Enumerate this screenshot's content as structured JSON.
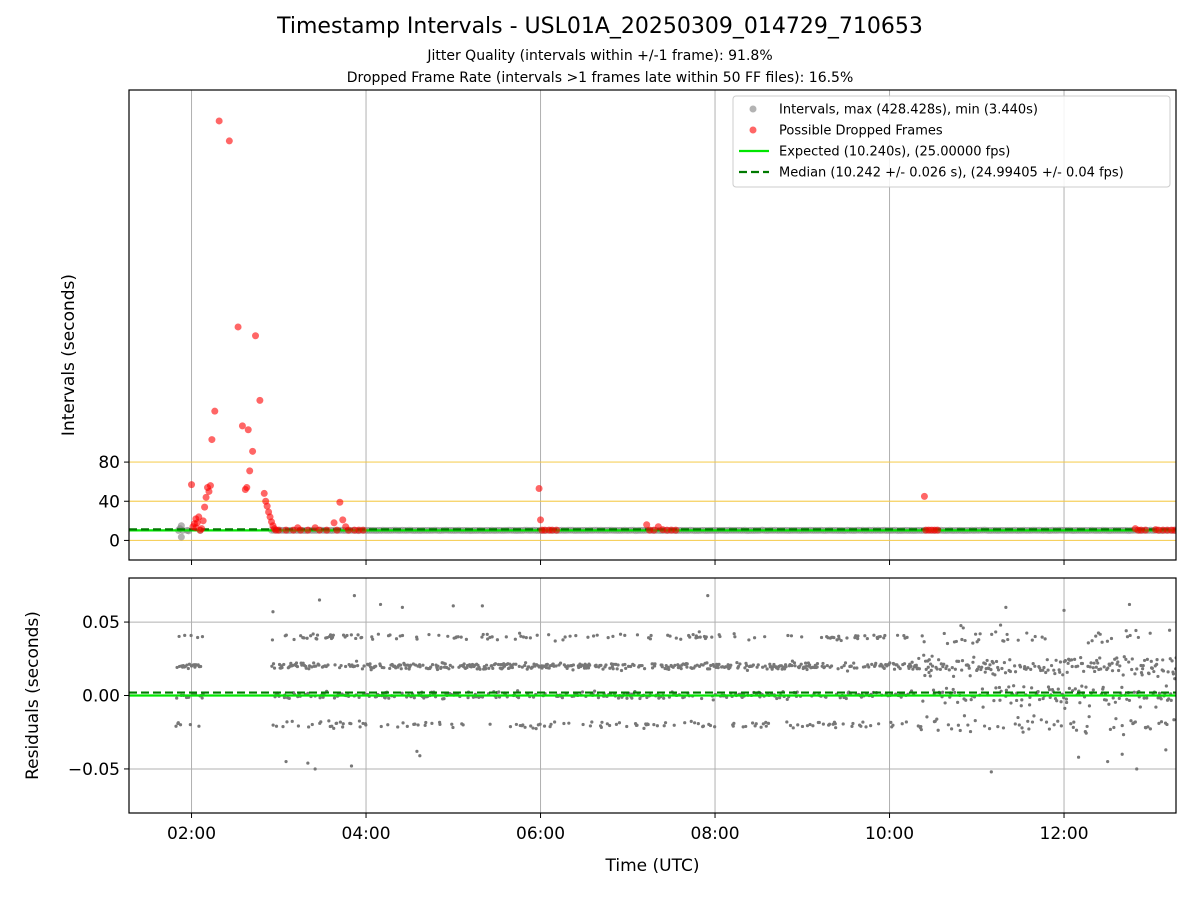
{
  "figure": {
    "title": "Timestamp Intervals - USL01A_20250309_014729_710653",
    "subtitle_1": "Jitter Quality (intervals within +/-1 frame): 91.8%",
    "subtitle_2": "Dropped Frame Rate (intervals >1 frames late within 50 FF files): 16.5%",
    "colors": {
      "interval": "#808080",
      "dropped": "#ff0000",
      "expected": "#00e600",
      "median": "#007a00",
      "threshold": "#f5c842",
      "grid": "#b0b0b0",
      "residual": "#777777"
    }
  },
  "chart_data": [
    {
      "type": "scatter",
      "name": "intervals",
      "title": "",
      "xlabel": "",
      "ylabel": "Intervals (seconds)",
      "xlim": [
        "01:17",
        "13:17"
      ],
      "ylim": [
        -20,
        460
      ],
      "y_ticks": [
        0,
        40,
        80
      ],
      "x_ticks": [
        "02:00",
        "04:00",
        "06:00",
        "08:00",
        "10:00",
        "12:00"
      ],
      "grid": "vertical",
      "threshold_lines": [
        0,
        40,
        80
      ],
      "legend_position": "top-right",
      "legend": [
        {
          "label": "Intervals, max (428.428s), min (3.440s)",
          "symbol": "dot-gray"
        },
        {
          "label": "Possible Dropped Frames",
          "symbol": "dot-red"
        },
        {
          "label": "Expected (10.240s), (25.00000 fps)",
          "symbol": "line-green"
        },
        {
          "label": "Median (10.242 +/- 0.026 s), (24.99405 +/- 0.04 fps)",
          "symbol": "dashed-darkgreen"
        }
      ],
      "expected_value": 10.24,
      "median_value": 10.242,
      "series": [
        {
          "name": "Intervals, max (428.428s), min (3.440s)",
          "points": [
            [
              "01:51",
              10.2
            ],
            [
              "01:52",
              12.0
            ],
            [
              "01:53",
              15.0
            ],
            [
              "01:53",
              3.44
            ],
            [
              "01:54",
              10.3
            ],
            [
              "01:57",
              10.2
            ],
            [
              "01:58",
              9.8
            ],
            [
              "02:06",
              10.1
            ]
          ],
          "baseline_from": "02:55",
          "baseline_to": "13:17",
          "baseline_value": 10.24
        },
        {
          "name": "Possible Dropped Frames",
          "points": [
            [
              "02:00",
              57
            ],
            [
              "02:01",
              14
            ],
            [
              "02:02",
              17
            ],
            [
              "02:03",
              22
            ],
            [
              "02:03",
              13
            ],
            [
              "02:04",
              18
            ],
            [
              "02:05",
              24
            ],
            [
              "02:06",
              10.5
            ],
            [
              "02:07",
              12
            ],
            [
              "02:08",
              20
            ],
            [
              "02:09",
              34
            ],
            [
              "02:10",
              44
            ],
            [
              "02:11",
              54
            ],
            [
              "02:12",
              50
            ],
            [
              "02:13",
              56
            ],
            [
              "02:14",
              103
            ],
            [
              "02:16",
              132
            ],
            [
              "02:19",
              428.4
            ],
            [
              "02:26",
              408
            ],
            [
              "02:32",
              218
            ],
            [
              "02:35",
              117
            ],
            [
              "02:37",
              52
            ],
            [
              "02:38",
              54
            ],
            [
              "02:39",
              113
            ],
            [
              "02:40",
              71
            ],
            [
              "02:42",
              91
            ],
            [
              "02:44",
              209
            ],
            [
              "02:47",
              143
            ],
            [
              "02:50",
              48
            ],
            [
              "02:51",
              40
            ],
            [
              "02:52",
              35
            ],
            [
              "02:53",
              29
            ],
            [
              "02:54",
              24
            ],
            [
              "02:55",
              19
            ],
            [
              "02:56",
              15
            ],
            [
              "02:57",
              12
            ],
            [
              "02:58",
              10.5
            ],
            [
              "03:00",
              10.5
            ],
            [
              "03:05",
              10.5
            ],
            [
              "03:10",
              10.5
            ],
            [
              "03:13",
              13
            ],
            [
              "03:15",
              10.5
            ],
            [
              "03:20",
              10.5
            ],
            [
              "03:25",
              13
            ],
            [
              "03:28",
              10.5
            ],
            [
              "03:33",
              10.5
            ],
            [
              "03:38",
              18
            ],
            [
              "03:40",
              10.5
            ],
            [
              "03:42",
              39
            ],
            [
              "03:44",
              21
            ],
            [
              "03:46",
              14
            ],
            [
              "03:48",
              10.5
            ],
            [
              "03:52",
              10.5
            ],
            [
              "03:55",
              10.5
            ],
            [
              "03:58",
              10.5
            ],
            [
              "05:59",
              53
            ],
            [
              "06:00",
              21
            ],
            [
              "06:01",
              10.5
            ],
            [
              "06:03",
              10.5
            ],
            [
              "06:06",
              10.5
            ],
            [
              "06:08",
              10.5
            ],
            [
              "06:11",
              10.5
            ],
            [
              "07:13",
              16
            ],
            [
              "07:15",
              10.5
            ],
            [
              "07:18",
              10.5
            ],
            [
              "07:21",
              14
            ],
            [
              "07:24",
              11
            ],
            [
              "07:27",
              10.5
            ],
            [
              "07:30",
              10.5
            ],
            [
              "07:33",
              10.5
            ],
            [
              "10:24",
              45
            ],
            [
              "10:25",
              10.5
            ],
            [
              "10:27",
              10.5
            ],
            [
              "10:29",
              10.5
            ],
            [
              "10:31",
              10.5
            ],
            [
              "10:33",
              10.5
            ],
            [
              "12:49",
              12
            ],
            [
              "12:51",
              10.5
            ],
            [
              "12:53",
              10.5
            ],
            [
              "12:56",
              10.5
            ],
            [
              "13:03",
              11
            ],
            [
              "13:05",
              10.5
            ],
            [
              "13:08",
              10.5
            ],
            [
              "13:11",
              10.5
            ],
            [
              "13:14",
              10.5
            ],
            [
              "13:16",
              10.5
            ]
          ]
        }
      ]
    },
    {
      "type": "scatter",
      "name": "residuals",
      "title": "",
      "xlabel": "Time (UTC)",
      "ylabel": "Residuals (seconds)",
      "xlim": [
        "01:17",
        "13:17"
      ],
      "ylim": [
        -0.08,
        0.08
      ],
      "y_ticks": [
        0.05,
        0.0,
        -0.05
      ],
      "y_tick_labels": [
        "0.05",
        "0.00",
        "−0.05"
      ],
      "x_ticks": [
        "02:00",
        "04:00",
        "06:00",
        "08:00",
        "10:00",
        "12:00"
      ],
      "grid": "both",
      "zero_line": 0.0,
      "median_offset": 0.002,
      "series": [
        {
          "name": "residuals",
          "segments": [
            {
              "from": "01:49",
              "to": "02:08",
              "levels": [
                -0.02,
                0.0,
                0.02,
                0.04
              ],
              "spread": 0.003
            },
            {
              "from": "02:55",
              "to": "10:20",
              "levels": [
                -0.02,
                0.0,
                0.02,
                0.04
              ],
              "spread": 0.004
            },
            {
              "from": "10:20",
              "to": "13:17",
              "levels": [
                -0.02,
                0.0,
                0.02,
                0.04
              ],
              "spread": 0.012
            }
          ],
          "outliers": [
            [
              "02:56",
              0.057
            ],
            [
              "03:28",
              0.065
            ],
            [
              "03:05",
              -0.045
            ],
            [
              "03:20",
              -0.046
            ],
            [
              "03:25",
              -0.05
            ],
            [
              "03:50",
              -0.048
            ],
            [
              "04:35",
              -0.038
            ],
            [
              "04:37",
              -0.041
            ],
            [
              "03:52",
              0.068
            ],
            [
              "07:55",
              0.068
            ],
            [
              "04:10",
              0.062
            ],
            [
              "04:25",
              0.06
            ],
            [
              "05:00",
              0.061
            ],
            [
              "05:20",
              0.061
            ],
            [
              "11:10",
              -0.052
            ],
            [
              "12:50",
              -0.05
            ],
            [
              "11:20",
              0.06
            ],
            [
              "12:45",
              0.062
            ],
            [
              "12:00",
              0.058
            ],
            [
              "12:10",
              -0.042
            ],
            [
              "12:30",
              -0.045
            ],
            [
              "12:40",
              -0.04
            ],
            [
              "13:10",
              -0.037
            ]
          ]
        }
      ]
    }
  ]
}
